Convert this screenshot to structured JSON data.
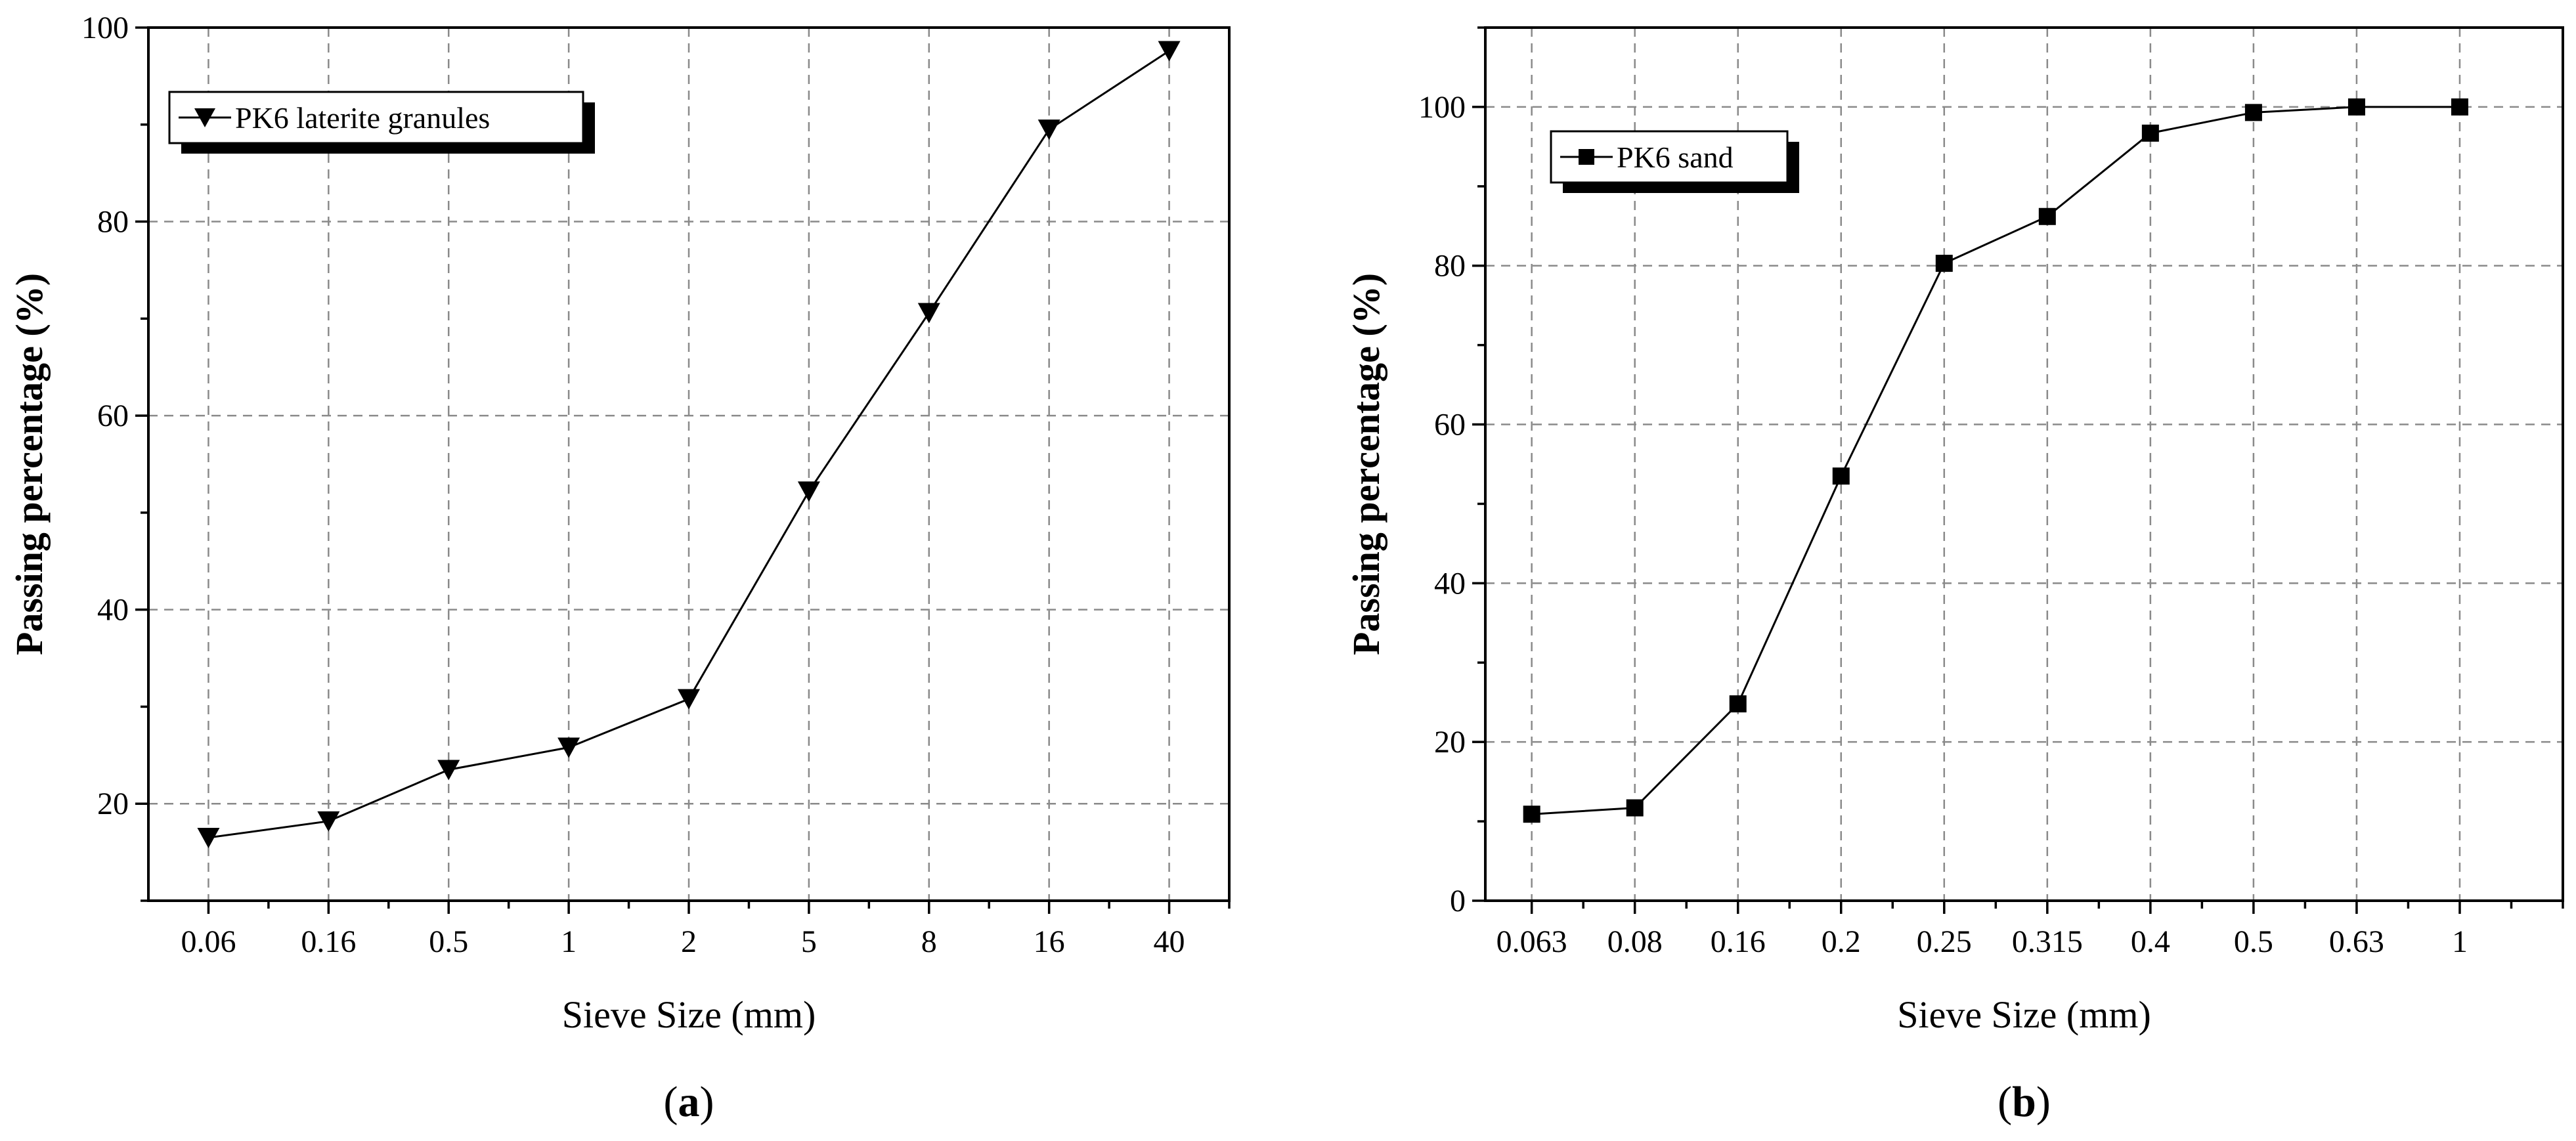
{
  "chart_data": [
    {
      "type": "line",
      "panel_label": "a",
      "categories": [
        "0.06",
        "0.16",
        "0.5",
        "1",
        "2",
        "5",
        "8",
        "16",
        "40"
      ],
      "series": [
        {
          "name": "PK6 laterite granules",
          "marker": "triangle-down",
          "values": [
            16.5,
            18.2,
            23.5,
            25.8,
            30.8,
            52.2,
            70.6,
            89.5,
            97.6
          ]
        }
      ],
      "xlabel": "Sieve Size (mm)",
      "ylabel": "Passing percentage (%)",
      "ylim": [
        10,
        100
      ],
      "yticks": [
        "20",
        "40",
        "60",
        "80",
        "100"
      ],
      "grid": true,
      "legend_position": "top-left"
    },
    {
      "type": "line",
      "panel_label": "b",
      "categories": [
        "0.063",
        "0.08",
        "0.16",
        "0.2",
        "0.25",
        "0.315",
        "0.4",
        "0.5",
        "0.63",
        "1"
      ],
      "series": [
        {
          "name": "PK6 sand",
          "marker": "square",
          "values": [
            10.9,
            11.7,
            24.8,
            53.5,
            80.3,
            86.2,
            96.7,
            99.3,
            100,
            100
          ]
        }
      ],
      "xlabel": "Sieve Size (mm)",
      "ylabel": "Passing percentage (%)",
      "ylim": [
        0,
        110
      ],
      "yticks": [
        "0",
        "20",
        "40",
        "60",
        "80",
        "100"
      ],
      "grid": true,
      "legend_position": "top-left"
    }
  ]
}
